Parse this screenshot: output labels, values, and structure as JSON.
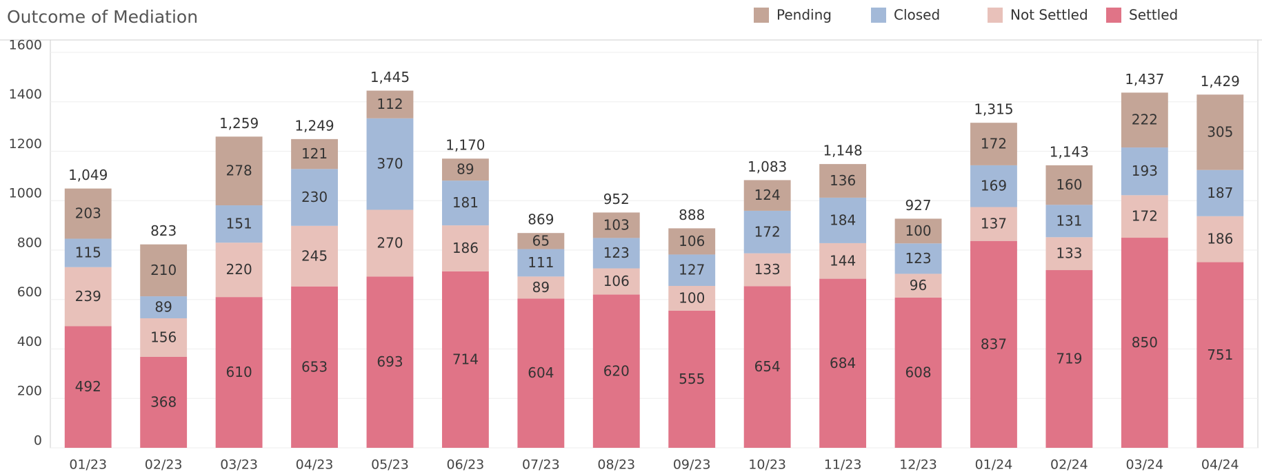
{
  "chart_data": {
    "type": "stacked_bar",
    "title": "Outcome of Mediation",
    "categories": [
      "01/23",
      "02/23",
      "03/23",
      "04/23",
      "05/23",
      "06/23",
      "07/23",
      "08/23",
      "09/23",
      "10/23",
      "11/23",
      "12/23",
      "01/24",
      "02/24",
      "03/24",
      "04/24"
    ],
    "series": [
      {
        "name": "Settled",
        "color": "#e07487",
        "values": [
          492,
          368,
          610,
          653,
          693,
          714,
          604,
          620,
          555,
          654,
          684,
          608,
          837,
          719,
          850,
          751
        ]
      },
      {
        "name": "Not Settled",
        "color": "#e8c1ba",
        "values": [
          239,
          156,
          220,
          245,
          270,
          186,
          89,
          106,
          100,
          133,
          144,
          96,
          137,
          133,
          172,
          186
        ]
      },
      {
        "name": "Closed",
        "color": "#a3b9d8",
        "values": [
          115,
          89,
          151,
          230,
          370,
          181,
          111,
          123,
          127,
          172,
          184,
          123,
          169,
          131,
          193,
          187
        ]
      },
      {
        "name": "Pending",
        "color": "#c4a597",
        "values": [
          203,
          210,
          278,
          121,
          112,
          89,
          65,
          103,
          106,
          124,
          136,
          100,
          172,
          160,
          222,
          305
        ]
      }
    ],
    "totals": [
      1049,
      823,
      1259,
      1249,
      1445,
      1170,
      869,
      952,
      888,
      1083,
      1148,
      927,
      1315,
      1143,
      1437,
      1429
    ],
    "total_labels": [
      "1,049",
      "823",
      "1,259",
      "1,249",
      "1,445",
      "1,170",
      "869",
      "952",
      "888",
      "1,083",
      "1,148",
      "927",
      "1,315",
      "1,143",
      "1,437",
      "1,429"
    ],
    "ylim": [
      0,
      1650
    ],
    "yticks": [
      0,
      200,
      400,
      600,
      800,
      1000,
      1200,
      1400,
      1600
    ],
    "grid": true
  }
}
